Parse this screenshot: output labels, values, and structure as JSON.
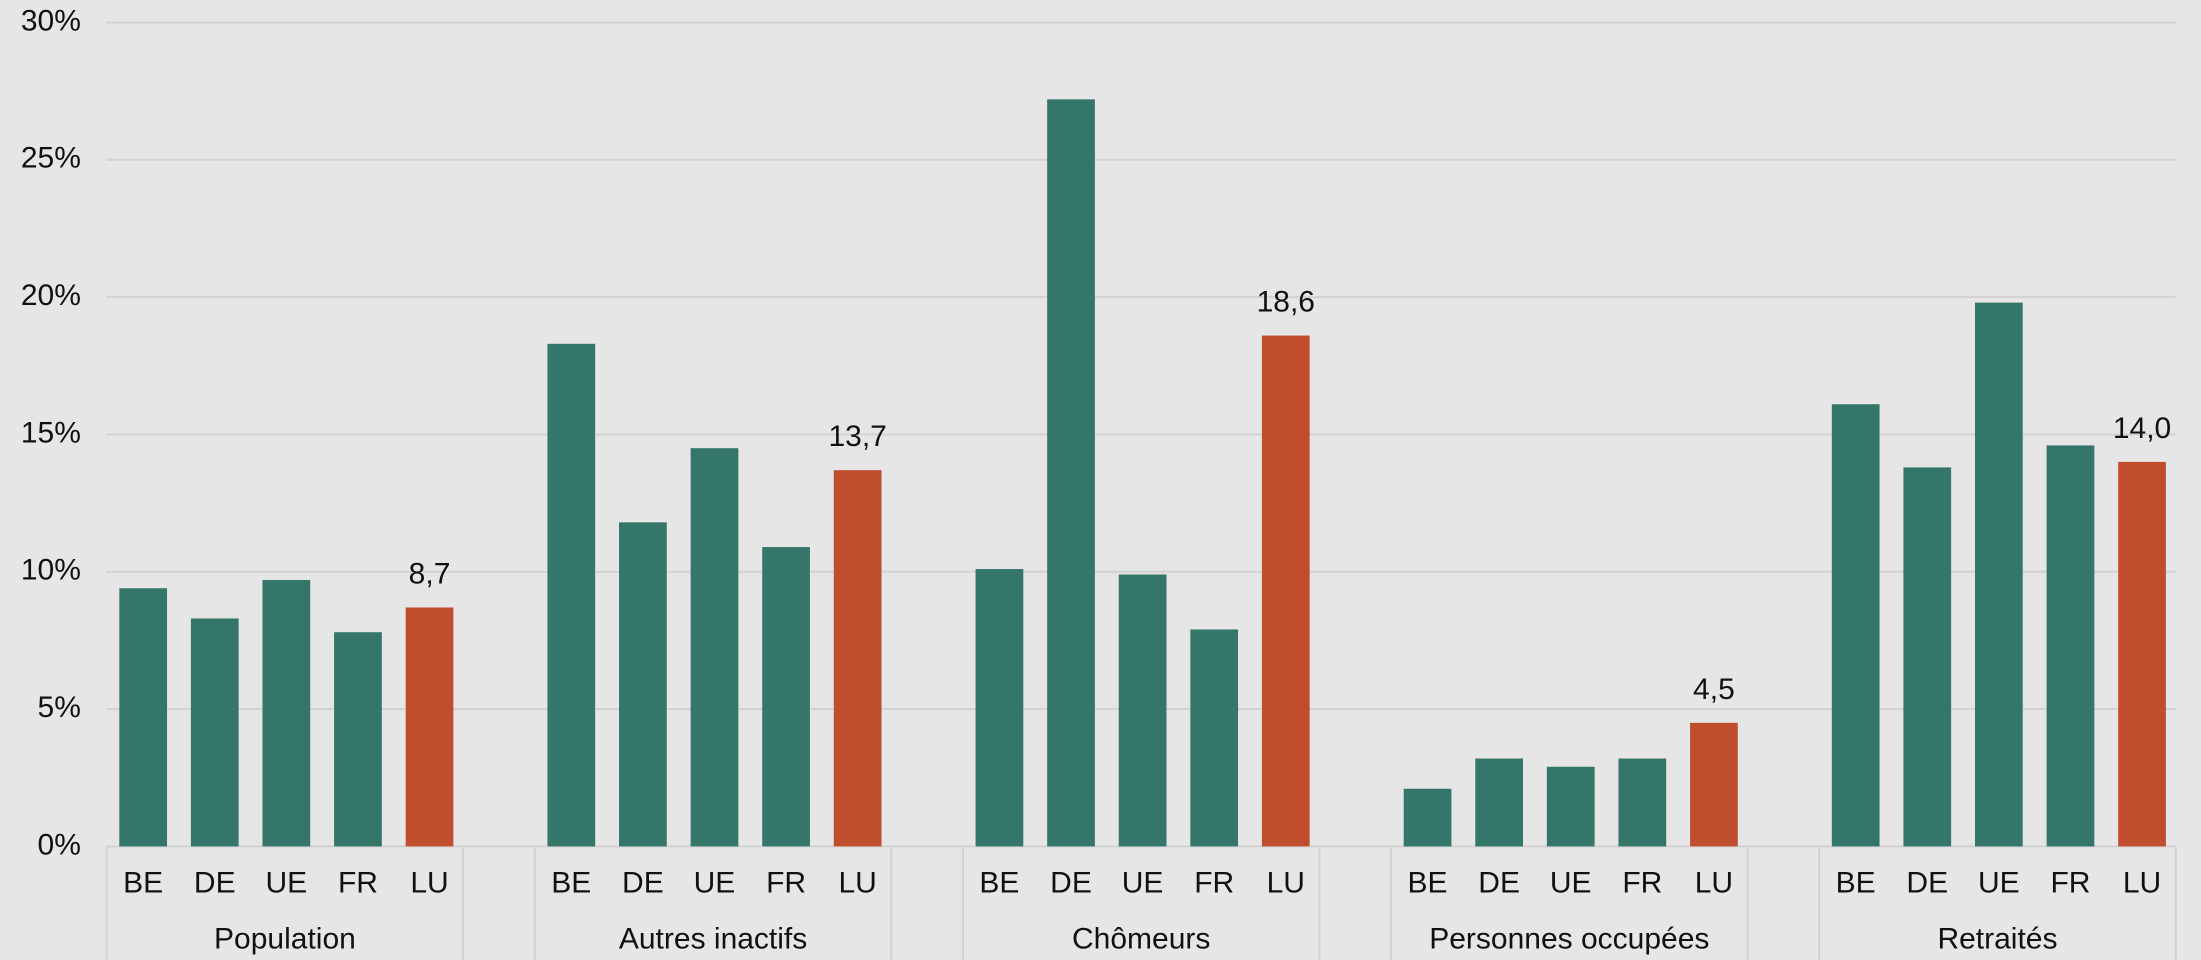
{
  "chart_data": {
    "type": "bar",
    "ylim": [
      0,
      30
    ],
    "yticks": [
      {
        "value": 0,
        "label": "0%"
      },
      {
        "value": 5,
        "label": "5%"
      },
      {
        "value": 10,
        "label": "10%"
      },
      {
        "value": 15,
        "label": "15%"
      },
      {
        "value": 20,
        "label": "20%"
      },
      {
        "value": 25,
        "label": "25%"
      },
      {
        "value": 30,
        "label": "30%"
      }
    ],
    "grid": true,
    "groups": [
      {
        "name": "Population",
        "categories": [
          "BE",
          "DE",
          "UE",
          "FR",
          "LU"
        ],
        "values": [
          9.4,
          8.3,
          9.7,
          7.8,
          8.7
        ],
        "value_labels": [
          null,
          null,
          null,
          null,
          "8,7"
        ],
        "colors": [
          "#35766a",
          "#35766a",
          "#35766a",
          "#35766a",
          "#c04e2e"
        ]
      },
      {
        "name": "Autres inactifs",
        "categories": [
          "BE",
          "DE",
          "UE",
          "FR",
          "LU"
        ],
        "values": [
          18.3,
          11.8,
          14.5,
          10.9,
          13.7
        ],
        "value_labels": [
          null,
          null,
          null,
          null,
          "13,7"
        ],
        "colors": [
          "#35766a",
          "#35766a",
          "#35766a",
          "#35766a",
          "#c04e2e"
        ]
      },
      {
        "name": "Chômeurs",
        "categories": [
          "BE",
          "DE",
          "UE",
          "FR",
          "LU"
        ],
        "values": [
          10.1,
          27.2,
          9.9,
          7.9,
          18.6
        ],
        "value_labels": [
          null,
          null,
          null,
          null,
          "18,6"
        ],
        "colors": [
          "#35766a",
          "#35766a",
          "#35766a",
          "#35766a",
          "#c04e2e"
        ]
      },
      {
        "name": "Personnes occupées",
        "categories": [
          "BE",
          "DE",
          "UE",
          "FR",
          "LU"
        ],
        "values": [
          2.1,
          3.2,
          2.9,
          3.2,
          4.5
        ],
        "value_labels": [
          null,
          null,
          null,
          null,
          "4,5"
        ],
        "colors": [
          "#35766a",
          "#35766a",
          "#35766a",
          "#35766a",
          "#c04e2e"
        ]
      },
      {
        "name": "Retraités",
        "categories": [
          "BE",
          "DE",
          "UE",
          "FR",
          "LU"
        ],
        "values": [
          16.1,
          13.8,
          19.8,
          14.6,
          14.0
        ],
        "value_labels": [
          null,
          null,
          null,
          null,
          "14,0"
        ],
        "colors": [
          "#35766a",
          "#35766a",
          "#35766a",
          "#35766a",
          "#c04e2e"
        ]
      }
    ]
  }
}
